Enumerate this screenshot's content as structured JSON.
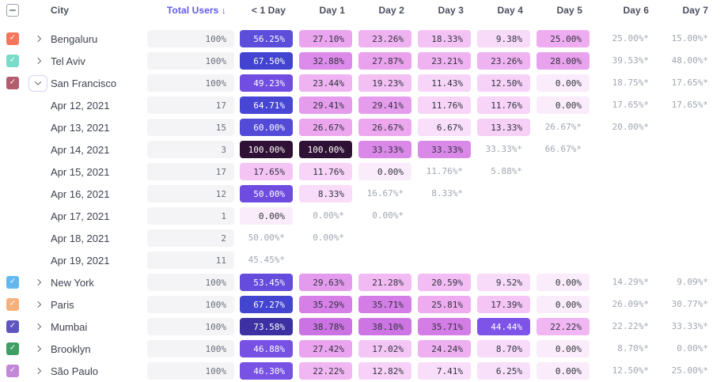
{
  "app": {
    "title": "Retention report table"
  },
  "colors": {
    "accent_sorted_header": "#615ae8",
    "muted_text": "#a0a6b1",
    "header_text": "#4a4f5e",
    "label_text": "#3e4250",
    "total_cell_bg": "#f4f4f6",
    "scale_low": "#faecfb",
    "scale_mid": "#7f54e9",
    "scale_high": "#2e1134"
  },
  "header": {
    "select_all_state": "indeterminate",
    "columns": [
      "City",
      "Total Users ↓",
      "< 1 Day",
      "Day 1",
      "Day 2",
      "Day 3",
      "Day 4",
      "Day 5",
      "Day 6",
      "Day 7"
    ]
  },
  "rows": [
    {
      "type": "city",
      "label": "Bengaluru",
      "checkbox_color": "#f4765d",
      "checked": true,
      "expanded": false,
      "total": "100%",
      "cells": [
        "56.25%",
        "27.10%",
        "23.26%",
        "18.33%",
        "9.38%",
        "25.00%",
        "25.00%*",
        "15.00%*"
      ]
    },
    {
      "type": "city",
      "label": "Tel Aviv",
      "checkbox_color": "#79dcc8",
      "checked": true,
      "expanded": false,
      "total": "100%",
      "cells": [
        "67.50%",
        "32.88%",
        "27.87%",
        "23.21%",
        "23.26%",
        "28.00%",
        "39.53%*",
        "48.00%*"
      ]
    },
    {
      "type": "city",
      "label": "San Francisco",
      "checkbox_color": "#b25c6d",
      "checked": true,
      "expanded": true,
      "total": "100%",
      "cells": [
        "49.23%",
        "23.44%",
        "19.23%",
        "11.43%",
        "12.50%",
        "0.00%",
        "18.75%*",
        "17.65%*"
      ]
    },
    {
      "type": "date",
      "label": "Apr 12, 2021",
      "total": "17",
      "cells": [
        "64.71%",
        "29.41%",
        "29.41%",
        "11.76%",
        "11.76%",
        "0.00%",
        "17.65%*",
        "17.65%*"
      ]
    },
    {
      "type": "date",
      "label": "Apr 13, 2021",
      "total": "15",
      "cells": [
        "60.00%",
        "26.67%",
        "26.67%",
        "6.67%",
        "13.33%",
        "26.67%*",
        "20.00%*",
        ""
      ]
    },
    {
      "type": "date",
      "label": "Apr 14, 2021",
      "total": "3",
      "cells": [
        "100.00%",
        "100.00%",
        "33.33%",
        "33.33%",
        "33.33%*",
        "66.67%*",
        "",
        ""
      ]
    },
    {
      "type": "date",
      "label": "Apr 15, 2021",
      "total": "17",
      "cells": [
        "17.65%",
        "11.76%",
        "0.00%",
        "11.76%*",
        "5.88%*",
        "",
        "",
        ""
      ]
    },
    {
      "type": "date",
      "label": "Apr 16, 2021",
      "total": "12",
      "cells": [
        "50.00%",
        "8.33%",
        "16.67%*",
        "8.33%*",
        "",
        "",
        "",
        ""
      ]
    },
    {
      "type": "date",
      "label": "Apr 17, 2021",
      "total": "1",
      "cells": [
        "0.00%",
        "0.00%*",
        "0.00%*",
        "",
        "",
        "",
        "",
        ""
      ]
    },
    {
      "type": "date",
      "label": "Apr 18, 2021",
      "total": "2",
      "cells": [
        "50.00%*",
        "0.00%*",
        "",
        "",
        "",
        "",
        "",
        ""
      ]
    },
    {
      "type": "date",
      "label": "Apr 19, 2021",
      "total": "11",
      "cells": [
        "45.45%*",
        "",
        "",
        "",
        "",
        "",
        "",
        ""
      ]
    },
    {
      "type": "city",
      "label": "New York",
      "checkbox_color": "#62b7ee",
      "checked": true,
      "expanded": false,
      "total": "100%",
      "cells": [
        "53.45%",
        "29.63%",
        "21.28%",
        "20.59%",
        "9.52%",
        "0.00%",
        "14.29%*",
        "9.09%*"
      ]
    },
    {
      "type": "city",
      "label": "Paris",
      "checkbox_color": "#f6b07c",
      "checked": true,
      "expanded": false,
      "total": "100%",
      "cells": [
        "67.27%",
        "35.29%",
        "35.71%",
        "25.81%",
        "17.39%",
        "0.00%",
        "26.09%*",
        "30.77%*"
      ]
    },
    {
      "type": "city",
      "label": "Mumbai",
      "checkbox_color": "#5f55c0",
      "checked": true,
      "expanded": false,
      "total": "100%",
      "cells": [
        "73.58%",
        "38.78%",
        "38.10%",
        "35.71%",
        "44.44%",
        "22.22%",
        "22.22%*",
        "33.33%*"
      ]
    },
    {
      "type": "city",
      "label": "Brooklyn",
      "checkbox_color": "#3f9e63",
      "checked": true,
      "expanded": false,
      "total": "100%",
      "cells": [
        "46.88%",
        "27.42%",
        "17.02%",
        "24.24%",
        "8.70%",
        "0.00%",
        "8.70%*",
        "0.00%*"
      ]
    },
    {
      "type": "city",
      "label": "São Paulo",
      "checkbox_color": "#c287d8",
      "checked": true,
      "expanded": false,
      "total": "100%",
      "cells": [
        "46.30%",
        "22.22%",
        "12.82%",
        "7.41%",
        "6.25%",
        "0.00%",
        "12.50%*",
        "25.00%*"
      ]
    }
  ]
}
